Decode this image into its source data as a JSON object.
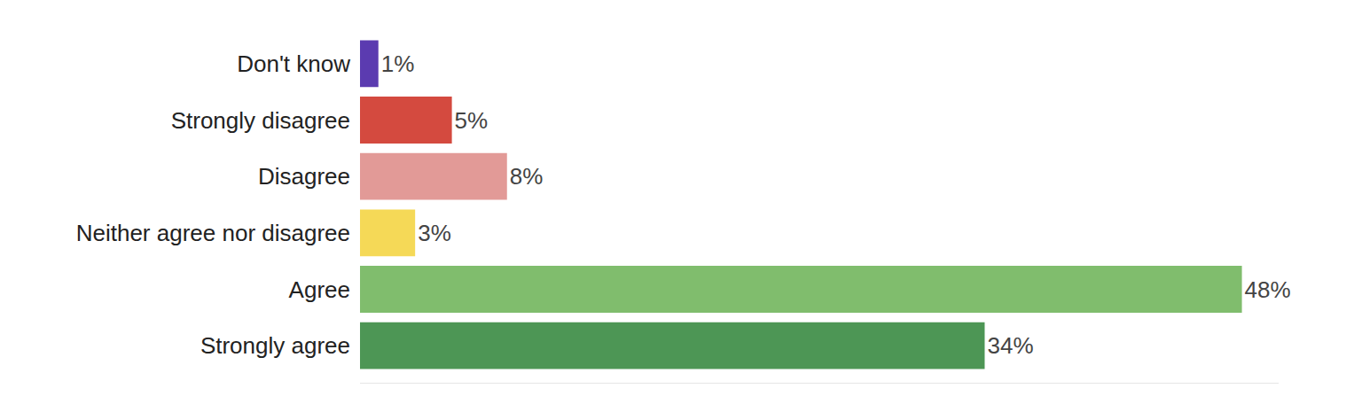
{
  "chart_data": {
    "type": "bar",
    "orientation": "horizontal",
    "categories": [
      "Don't know",
      "Strongly disagree",
      "Disagree",
      "Neither agree nor disagree",
      "Agree",
      "Strongly agree"
    ],
    "values": [
      1,
      5,
      8,
      3,
      48,
      34
    ],
    "value_labels": [
      "1%",
      "5%",
      "8%",
      "3%",
      "48%",
      "34%"
    ],
    "colors": [
      "#5b3bb0",
      "#d44a3f",
      "#e29a97",
      "#f5d957",
      "#80bd6d",
      "#4d9655"
    ],
    "xlim": [
      0,
      50
    ],
    "grid": false,
    "data_labels": true,
    "tick_labels": "y"
  }
}
